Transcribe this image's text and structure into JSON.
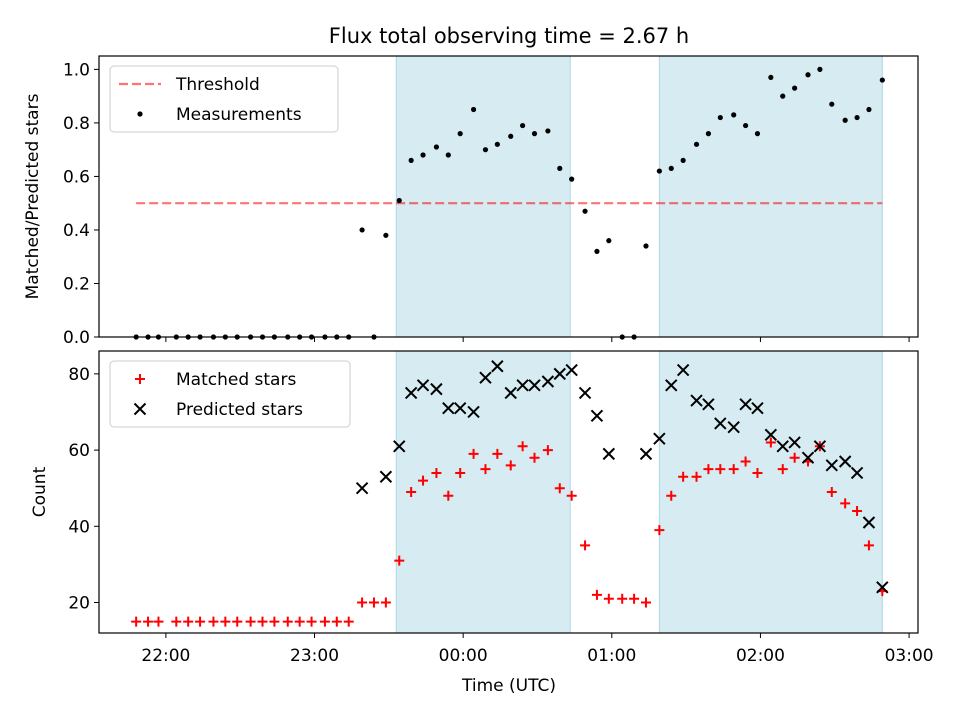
{
  "figure": {
    "title": "Flux total observing time = 2.67 h",
    "xlabel": "Time (UTC)",
    "xticks": [
      "22:00",
      "23:00",
      "00:00",
      "01:00",
      "02:00",
      "03:00"
    ]
  },
  "colors": {
    "shade": "#add8e6",
    "threshold": "#ff0000",
    "measurement": "#000000",
    "matched": "#ff0000",
    "predicted": "#000000"
  },
  "chart_data": [
    {
      "type": "scatter",
      "ylabel": "Matched/Predicted stars",
      "yticks": [
        "0.0",
        "0.2",
        "0.4",
        "0.6",
        "0.8",
        "1.0"
      ],
      "ylim": [
        0,
        1.05
      ],
      "x_unit": "hours since 22:00 UTC",
      "xlim": [
        -0.45,
        5.06
      ],
      "shaded_intervals": [
        [
          1.55,
          2.72
        ],
        [
          3.32,
          4.82
        ]
      ],
      "legend": {
        "position": "upper left",
        "entries": [
          "Threshold",
          "Measurements"
        ]
      },
      "threshold": {
        "name": "Threshold",
        "value": 0.5,
        "x_range": [
          -0.2,
          4.82
        ]
      },
      "series": [
        {
          "name": "Measurements",
          "points": [
            [
              -0.2,
              0
            ],
            [
              -0.12,
              0
            ],
            [
              -0.05,
              0
            ],
            [
              0.07,
              0
            ],
            [
              0.15,
              0
            ],
            [
              0.23,
              0
            ],
            [
              0.32,
              0
            ],
            [
              0.4,
              0
            ],
            [
              0.48,
              0
            ],
            [
              0.57,
              0
            ],
            [
              0.65,
              0
            ],
            [
              0.73,
              0
            ],
            [
              0.82,
              0
            ],
            [
              0.9,
              0
            ],
            [
              0.98,
              0
            ],
            [
              1.07,
              0
            ],
            [
              1.15,
              0
            ],
            [
              1.23,
              0
            ],
            [
              1.32,
              0.4
            ],
            [
              1.4,
              0
            ],
            [
              1.48,
              0.38
            ],
            [
              1.57,
              0.51
            ],
            [
              1.65,
              0.66
            ],
            [
              1.73,
              0.68
            ],
            [
              1.82,
              0.71
            ],
            [
              1.9,
              0.68
            ],
            [
              1.98,
              0.76
            ],
            [
              2.07,
              0.85
            ],
            [
              2.15,
              0.7
            ],
            [
              2.23,
              0.72
            ],
            [
              2.32,
              0.75
            ],
            [
              2.4,
              0.79
            ],
            [
              2.48,
              0.76
            ],
            [
              2.57,
              0.77
            ],
            [
              2.65,
              0.63
            ],
            [
              2.73,
              0.59
            ],
            [
              2.82,
              0.47
            ],
            [
              2.9,
              0.32
            ],
            [
              2.98,
              0.36
            ],
            [
              3.07,
              0
            ],
            [
              3.15,
              0
            ],
            [
              3.23,
              0.34
            ],
            [
              3.32,
              0.62
            ],
            [
              3.4,
              0.63
            ],
            [
              3.48,
              0.66
            ],
            [
              3.57,
              0.72
            ],
            [
              3.65,
              0.76
            ],
            [
              3.73,
              0.82
            ],
            [
              3.82,
              0.83
            ],
            [
              3.9,
              0.79
            ],
            [
              3.98,
              0.76
            ],
            [
              4.07,
              0.97
            ],
            [
              4.15,
              0.9
            ],
            [
              4.23,
              0.93
            ],
            [
              4.32,
              0.98
            ],
            [
              4.4,
              1.0
            ],
            [
              4.48,
              0.87
            ],
            [
              4.57,
              0.81
            ],
            [
              4.65,
              0.82
            ],
            [
              4.73,
              0.85
            ],
            [
              4.82,
              0.96
            ]
          ]
        }
      ]
    },
    {
      "type": "scatter",
      "ylabel": "Count",
      "yticks": [
        "20",
        "40",
        "60",
        "80"
      ],
      "ylim": [
        12,
        86
      ],
      "x_unit": "hours since 22:00 UTC",
      "xlim": [
        -0.45,
        5.06
      ],
      "shaded_intervals": [
        [
          1.55,
          2.72
        ],
        [
          3.32,
          4.82
        ]
      ],
      "legend": {
        "position": "upper left",
        "entries": [
          "Matched stars",
          "Predicted stars"
        ]
      },
      "series": [
        {
          "name": "Matched stars",
          "marker": "plus",
          "points": [
            [
              -0.2,
              15
            ],
            [
              -0.12,
              15
            ],
            [
              -0.05,
              15
            ],
            [
              0.07,
              15
            ],
            [
              0.15,
              15
            ],
            [
              0.23,
              15
            ],
            [
              0.32,
              15
            ],
            [
              0.4,
              15
            ],
            [
              0.48,
              15
            ],
            [
              0.57,
              15
            ],
            [
              0.65,
              15
            ],
            [
              0.73,
              15
            ],
            [
              0.82,
              15
            ],
            [
              0.9,
              15
            ],
            [
              0.98,
              15
            ],
            [
              1.07,
              15
            ],
            [
              1.15,
              15
            ],
            [
              1.23,
              15
            ],
            [
              1.32,
              20
            ],
            [
              1.4,
              20
            ],
            [
              1.48,
              20
            ],
            [
              1.57,
              31
            ],
            [
              1.65,
              49
            ],
            [
              1.73,
              52
            ],
            [
              1.82,
              54
            ],
            [
              1.9,
              48
            ],
            [
              1.98,
              54
            ],
            [
              2.07,
              59
            ],
            [
              2.15,
              55
            ],
            [
              2.23,
              59
            ],
            [
              2.32,
              56
            ],
            [
              2.4,
              61
            ],
            [
              2.48,
              58
            ],
            [
              2.57,
              60
            ],
            [
              2.65,
              50
            ],
            [
              2.73,
              48
            ],
            [
              2.82,
              35
            ],
            [
              2.9,
              22
            ],
            [
              2.98,
              21
            ],
            [
              3.07,
              21
            ],
            [
              3.15,
              21
            ],
            [
              3.23,
              20
            ],
            [
              3.32,
              39
            ],
            [
              3.4,
              48
            ],
            [
              3.48,
              53
            ],
            [
              3.57,
              53
            ],
            [
              3.65,
              55
            ],
            [
              3.73,
              55
            ],
            [
              3.82,
              55
            ],
            [
              3.9,
              57
            ],
            [
              3.98,
              54
            ],
            [
              4.07,
              62
            ],
            [
              4.15,
              55
            ],
            [
              4.23,
              58
            ],
            [
              4.32,
              57
            ],
            [
              4.4,
              61
            ],
            [
              4.48,
              49
            ],
            [
              4.57,
              46
            ],
            [
              4.65,
              44
            ],
            [
              4.73,
              35
            ],
            [
              4.82,
              23
            ]
          ]
        },
        {
          "name": "Predicted stars",
          "marker": "x",
          "points": [
            [
              1.32,
              50
            ],
            [
              1.48,
              53
            ],
            [
              1.57,
              61
            ],
            [
              1.65,
              75
            ],
            [
              1.73,
              77
            ],
            [
              1.82,
              76
            ],
            [
              1.9,
              71
            ],
            [
              1.98,
              71
            ],
            [
              2.07,
              70
            ],
            [
              2.15,
              79
            ],
            [
              2.23,
              82
            ],
            [
              2.32,
              75
            ],
            [
              2.4,
              77
            ],
            [
              2.48,
              77
            ],
            [
              2.57,
              78
            ],
            [
              2.65,
              80
            ],
            [
              2.73,
              81
            ],
            [
              2.82,
              75
            ],
            [
              2.9,
              69
            ],
            [
              2.98,
              59
            ],
            [
              3.23,
              59
            ],
            [
              3.32,
              63
            ],
            [
              3.4,
              77
            ],
            [
              3.48,
              81
            ],
            [
              3.57,
              73
            ],
            [
              3.65,
              72
            ],
            [
              3.73,
              67
            ],
            [
              3.82,
              66
            ],
            [
              3.9,
              72
            ],
            [
              3.98,
              71
            ],
            [
              4.07,
              64
            ],
            [
              4.15,
              61
            ],
            [
              4.23,
              62
            ],
            [
              4.32,
              58
            ],
            [
              4.4,
              61
            ],
            [
              4.48,
              56
            ],
            [
              4.57,
              57
            ],
            [
              4.65,
              54
            ],
            [
              4.73,
              41
            ],
            [
              4.82,
              24
            ]
          ]
        }
      ]
    }
  ]
}
